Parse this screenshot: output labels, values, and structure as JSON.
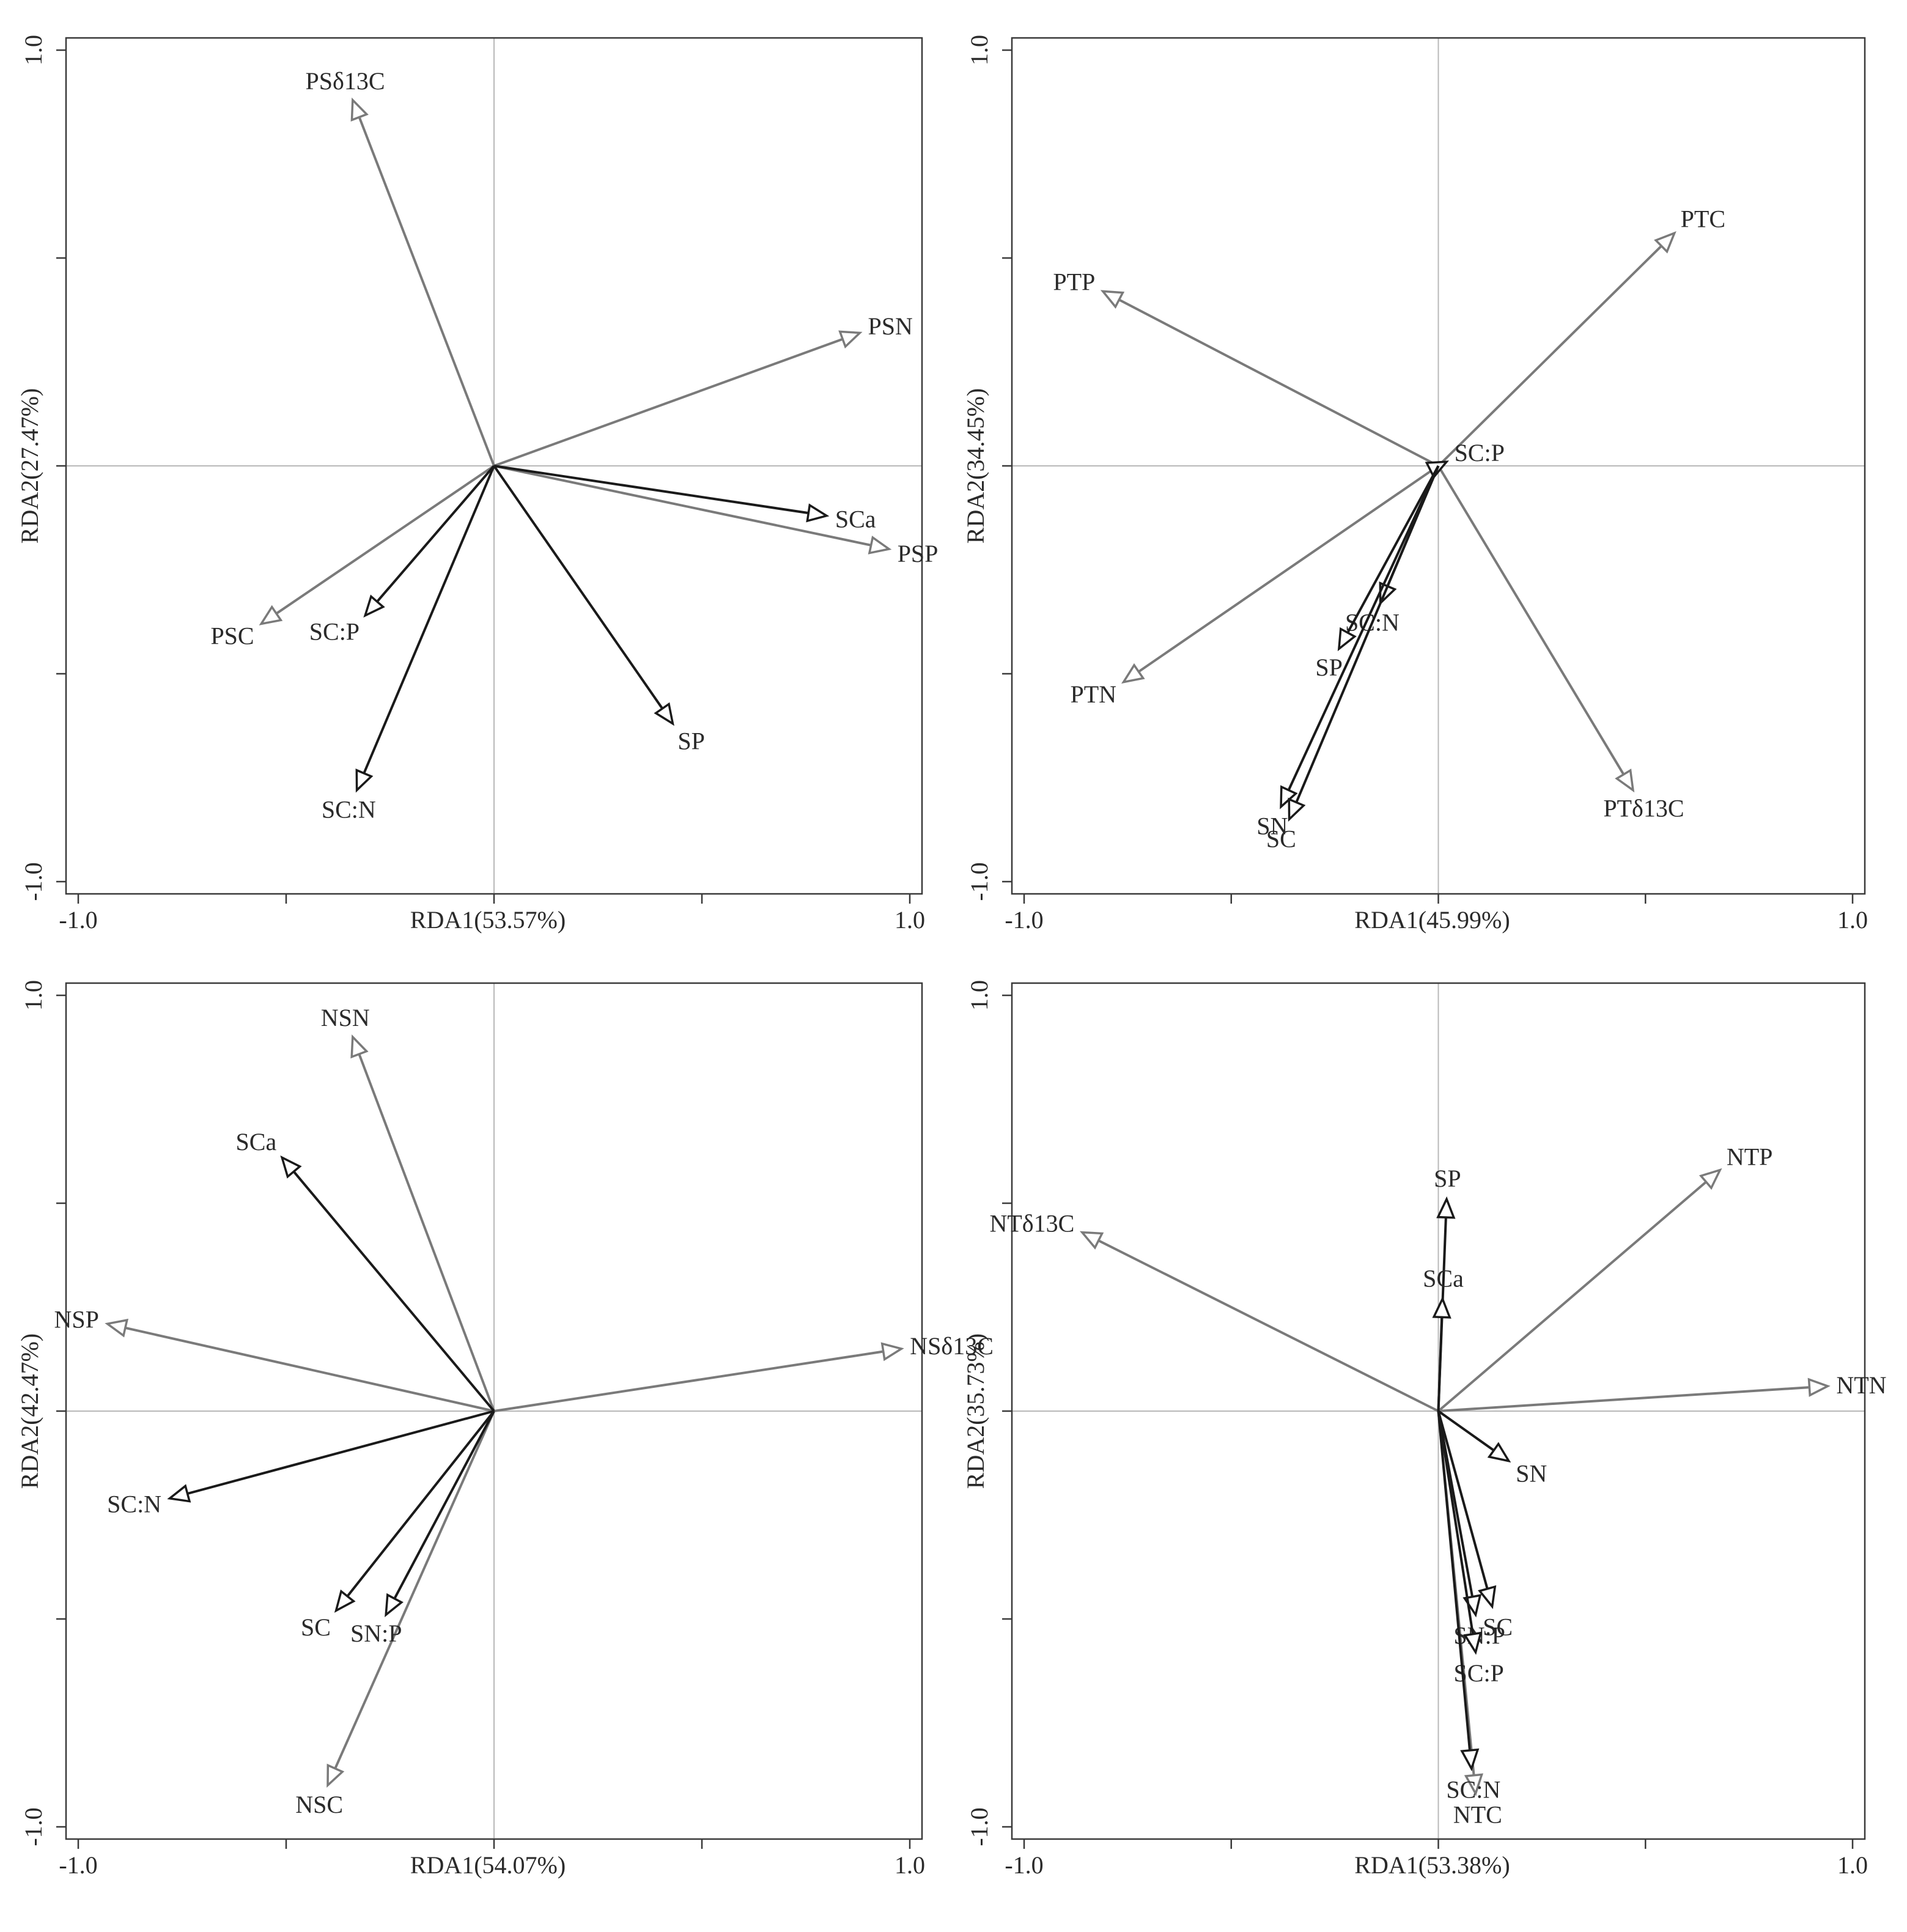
{
  "colors": {
    "response": "#7a7a7a",
    "explanatory": "#1a1a1a",
    "frame": "#3a3a3a",
    "zero_line": "#b8b8b8"
  },
  "chart_data": [
    {
      "type": "scatter",
      "subtype": "rda-biplot",
      "panel": "top-left",
      "xlabel": "RDA1(53.57%)",
      "ylabel": "RDA2(27.47%)",
      "xlim": [
        -1.0,
        1.0
      ],
      "ylim": [
        -1.0,
        1.0
      ],
      "xticks": [
        -1.0,
        1.0
      ],
      "yticks": [
        -1.0,
        1.0
      ],
      "tick_labels": {
        "x_min": "-1.0",
        "x_max": "1.0",
        "y_min": "-1.0",
        "y_max": "1.0"
      },
      "vectors": [
        {
          "name": "PSδ13C",
          "x": -0.34,
          "y": 0.88,
          "group": "response"
        },
        {
          "name": "PSN",
          "x": 0.88,
          "y": 0.32,
          "group": "response"
        },
        {
          "name": "PSP",
          "x": 0.95,
          "y": -0.2,
          "group": "response"
        },
        {
          "name": "PSC",
          "x": -0.56,
          "y": -0.38,
          "group": "response"
        },
        {
          "name": "SCa",
          "x": 0.8,
          "y": -0.12,
          "group": "explanatory"
        },
        {
          "name": "SC:P",
          "x": -0.31,
          "y": -0.36,
          "group": "explanatory"
        },
        {
          "name": "SC:N",
          "x": -0.33,
          "y": -0.78,
          "group": "explanatory"
        },
        {
          "name": "SP",
          "x": 0.43,
          "y": -0.62,
          "group": "explanatory"
        }
      ]
    },
    {
      "type": "scatter",
      "subtype": "rda-biplot",
      "panel": "top-right",
      "xlabel": "RDA1(45.99%)",
      "ylabel": "RDA2(34.45%)",
      "xlim": [
        -1.0,
        1.0
      ],
      "ylim": [
        -1.0,
        1.0
      ],
      "xticks": [
        -1.0,
        1.0
      ],
      "yticks": [
        -1.0,
        1.0
      ],
      "tick_labels": {
        "x_min": "-1.0",
        "x_max": "1.0",
        "y_min": "-1.0",
        "y_max": "1.0"
      },
      "vectors": [
        {
          "name": "PTC",
          "x": 0.57,
          "y": 0.56,
          "group": "response"
        },
        {
          "name": "PTP",
          "x": -0.81,
          "y": 0.42,
          "group": "response"
        },
        {
          "name": "PTN",
          "x": -0.76,
          "y": -0.52,
          "group": "response"
        },
        {
          "name": "PTδ13C",
          "x": 0.47,
          "y": -0.78,
          "group": "response"
        },
        {
          "name": "SC:P",
          "x": 0.02,
          "y": 0.01,
          "group": "explanatory"
        },
        {
          "name": "SC:N",
          "x": -0.14,
          "y": -0.33,
          "group": "explanatory"
        },
        {
          "name": "SP",
          "x": -0.24,
          "y": -0.44,
          "group": "explanatory"
        },
        {
          "name": "SN",
          "x": -0.38,
          "y": -0.82,
          "group": "explanatory"
        },
        {
          "name": "SC",
          "x": -0.36,
          "y": -0.85,
          "group": "explanatory"
        }
      ]
    },
    {
      "type": "scatter",
      "subtype": "rda-biplot",
      "panel": "bottom-left",
      "xlabel": "RDA1(54.07%)",
      "ylabel": "RDA2(42.47%)",
      "xlim": [
        -1.0,
        1.0
      ],
      "ylim": [
        -1.0,
        1.0
      ],
      "xticks": [
        -1.0,
        1.0
      ],
      "yticks": [
        -1.0,
        1.0
      ],
      "tick_labels": {
        "x_min": "-1.0",
        "x_max": "1.0",
        "y_min": "-1.0",
        "y_max": "1.0"
      },
      "vectors": [
        {
          "name": "NSN",
          "x": -0.34,
          "y": 0.9,
          "group": "response"
        },
        {
          "name": "NSP",
          "x": -0.93,
          "y": 0.21,
          "group": "response"
        },
        {
          "name": "NSδ13C",
          "x": 0.98,
          "y": 0.15,
          "group": "response"
        },
        {
          "name": "NSC",
          "x": -0.4,
          "y": -0.9,
          "group": "response"
        },
        {
          "name": "SCa",
          "x": -0.51,
          "y": 0.61,
          "group": "explanatory"
        },
        {
          "name": "SC:N",
          "x": -0.78,
          "y": -0.21,
          "group": "explanatory"
        },
        {
          "name": "SC",
          "x": -0.38,
          "y": -0.48,
          "group": "explanatory"
        },
        {
          "name": "SN:P",
          "x": -0.26,
          "y": -0.49,
          "group": "explanatory"
        }
      ]
    },
    {
      "type": "scatter",
      "subtype": "rda-biplot",
      "panel": "bottom-right",
      "xlabel": "RDA1(53.38%)",
      "ylabel": "RDA2(35.73%)",
      "xlim": [
        -1.0,
        1.0
      ],
      "ylim": [
        -1.0,
        1.0
      ],
      "xticks": [
        -1.0,
        1.0
      ],
      "yticks": [
        -1.0,
        1.0
      ],
      "tick_labels": {
        "x_min": "-1.0",
        "x_max": "1.0",
        "y_min": "-1.0",
        "y_max": "1.0"
      },
      "vectors": [
        {
          "name": "NTδ13C",
          "x": -0.86,
          "y": 0.43,
          "group": "response"
        },
        {
          "name": "NTP",
          "x": 0.68,
          "y": 0.58,
          "group": "response"
        },
        {
          "name": "NTN",
          "x": 0.94,
          "y": 0.06,
          "group": "response"
        },
        {
          "name": "NTC",
          "x": 0.09,
          "y": -0.92,
          "group": "response"
        },
        {
          "name": "SP",
          "x": 0.02,
          "y": 0.51,
          "group": "explanatory"
        },
        {
          "name": "SCa",
          "x": 0.01,
          "y": 0.27,
          "group": "explanatory"
        },
        {
          "name": "SN",
          "x": 0.17,
          "y": -0.12,
          "group": "explanatory"
        },
        {
          "name": "SC",
          "x": 0.13,
          "y": -0.47,
          "group": "explanatory"
        },
        {
          "name": "SN:P",
          "x": 0.09,
          "y": -0.49,
          "group": "explanatory"
        },
        {
          "name": "SC:P",
          "x": 0.09,
          "y": -0.58,
          "group": "explanatory"
        },
        {
          "name": "SC:N",
          "x": 0.08,
          "y": -0.86,
          "group": "explanatory"
        }
      ]
    }
  ]
}
